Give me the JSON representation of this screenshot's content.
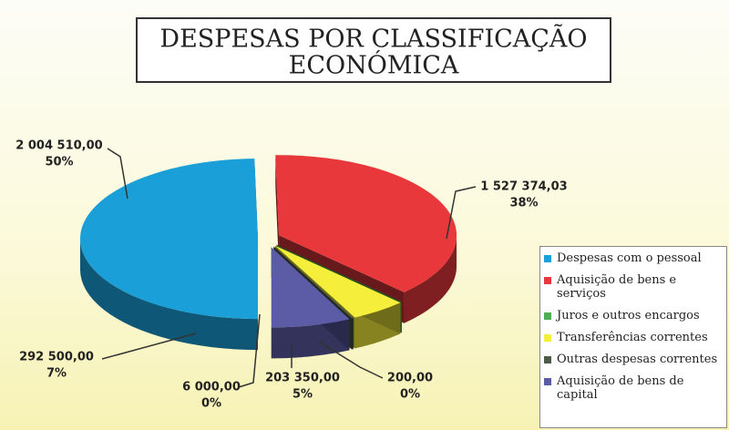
{
  "chart_data": {
    "type": "pie",
    "title": [
      "DESPESAS POR CLASSIFICAÇÃO",
      "ECONÓMICA"
    ],
    "categories": [
      "Despesas com o pessoal",
      "Aquisição de bens e serviços",
      "Juros e outros encargos",
      "Transferências correntes",
      "Outras despesas correntes",
      "Aquisição de bens de capital"
    ],
    "values": [
      2004510.0,
      1527374.03,
      200.0,
      203350.0,
      6000.0,
      292500.0
    ],
    "value_labels": [
      "2 004 510,00",
      "1 527 374,03",
      "200,00",
      "203 350,00",
      "6 000,00",
      "292 500,00"
    ],
    "percent_labels": [
      "50%",
      "38%",
      "0%",
      "5%",
      "0%",
      "7%"
    ],
    "colors": [
      "#1b9fd8",
      "#e8383c",
      "#4caf50",
      "#f5ee3a",
      "#4d5a48",
      "#5c5ca6"
    ],
    "legend": "right"
  }
}
